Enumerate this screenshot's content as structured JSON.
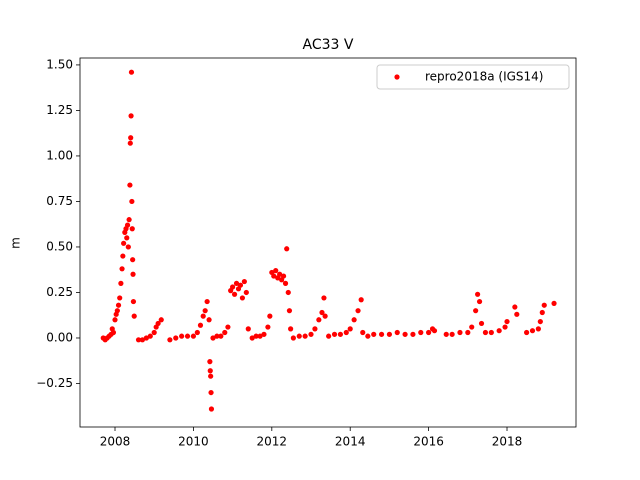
{
  "chart_data": {
    "type": "scatter",
    "title": "AC33 V",
    "y_label": "m",
    "xlim": [
      2007.107,
      2019.76
    ],
    "ylim": [
      -0.489,
      1.538
    ],
    "xticks": [
      2008,
      2010,
      2012,
      2014,
      2016,
      2018
    ],
    "yticks": [
      {
        "value": -0.25,
        "label": "−0.25"
      },
      {
        "value": 0,
        "label": "0.00"
      },
      {
        "value": 0.25,
        "label": "0.25"
      },
      {
        "value": 0.5,
        "label": "0.50"
      },
      {
        "value": 0.75,
        "label": "0.75"
      },
      {
        "value": 1,
        "label": "1.00"
      },
      {
        "value": 1.25,
        "label": "1.25"
      },
      {
        "value": 1.5,
        "label": "1.50"
      }
    ],
    "legend": "upper right",
    "series": [
      {
        "name": "repro2018a (IGS14)",
        "color": "#ff0000",
        "x": [
          2007.7,
          2007.75,
          2007.8,
          2007.85,
          2007.9,
          2007.93,
          2007.96,
          2008.0,
          2008.03,
          2008.06,
          2008.09,
          2008.12,
          2008.15,
          2008.18,
          2008.2,
          2008.22,
          2008.25,
          2008.28,
          2008.3,
          2008.32,
          2008.34,
          2008.36,
          2008.38,
          2008.39,
          2008.4,
          2008.41,
          2008.42,
          2008.43,
          2008.44,
          2008.45,
          2008.46,
          2008.47,
          2008.49,
          2008.6,
          2008.7,
          2008.8,
          2008.9,
          2009.0,
          2009.05,
          2009.1,
          2009.18,
          2009.4,
          2009.55,
          2009.7,
          2009.85,
          2010.0,
          2010.1,
          2010.18,
          2010.25,
          2010.3,
          2010.35,
          2010.4,
          2010.42,
          2010.43,
          2010.44,
          2010.45,
          2010.46,
          2010.5,
          2010.6,
          2010.7,
          2010.8,
          2010.88,
          2010.95,
          2011.0,
          2011.05,
          2011.1,
          2011.15,
          2011.2,
          2011.25,
          2011.3,
          2011.35,
          2011.4,
          2011.5,
          2011.6,
          2011.7,
          2011.8,
          2011.9,
          2011.95,
          2012.0,
          2012.05,
          2012.1,
          2012.15,
          2012.2,
          2012.25,
          2012.3,
          2012.35,
          2012.38,
          2012.42,
          2012.45,
          2012.48,
          2012.55,
          2012.7,
          2012.85,
          2013.0,
          2013.1,
          2013.2,
          2013.28,
          2013.33,
          2013.36,
          2013.45,
          2013.6,
          2013.75,
          2013.9,
          2014.0,
          2014.1,
          2014.2,
          2014.28,
          2014.32,
          2014.45,
          2014.6,
          2014.8,
          2015.0,
          2015.2,
          2015.4,
          2015.6,
          2015.8,
          2016.0,
          2016.1,
          2016.15,
          2016.45,
          2016.6,
          2016.8,
          2017.0,
          2017.1,
          2017.2,
          2017.25,
          2017.3,
          2017.35,
          2017.45,
          2017.6,
          2017.8,
          2017.95,
          2018.0,
          2018.2,
          2018.25,
          2018.5,
          2018.65,
          2018.8,
          2018.85,
          2018.9,
          2018.95,
          2019.2
        ],
        "values": [
          0.0,
          -0.01,
          0.0,
          0.01,
          0.02,
          0.05,
          0.03,
          0.1,
          0.13,
          0.15,
          0.18,
          0.22,
          0.3,
          0.38,
          0.45,
          0.52,
          0.58,
          0.6,
          0.55,
          0.62,
          0.5,
          0.65,
          0.84,
          1.07,
          1.1,
          1.22,
          1.46,
          0.75,
          0.6,
          0.43,
          0.35,
          0.2,
          0.12,
          -0.01,
          -0.01,
          0.0,
          0.01,
          0.03,
          0.06,
          0.08,
          0.1,
          -0.01,
          0.0,
          0.01,
          0.01,
          0.01,
          0.03,
          0.07,
          0.12,
          0.15,
          0.2,
          0.1,
          -0.13,
          -0.18,
          -0.21,
          -0.3,
          -0.39,
          0.0,
          0.01,
          0.01,
          0.03,
          0.06,
          0.26,
          0.28,
          0.24,
          0.3,
          0.27,
          0.29,
          0.22,
          0.31,
          0.25,
          0.05,
          0.0,
          0.01,
          0.01,
          0.02,
          0.06,
          0.12,
          0.36,
          0.34,
          0.37,
          0.33,
          0.35,
          0.32,
          0.34,
          0.3,
          0.49,
          0.25,
          0.15,
          0.05,
          0.0,
          0.01,
          0.01,
          0.02,
          0.05,
          0.1,
          0.14,
          0.22,
          0.12,
          0.01,
          0.02,
          0.02,
          0.03,
          0.05,
          0.1,
          0.15,
          0.21,
          0.03,
          0.01,
          0.02,
          0.02,
          0.02,
          0.03,
          0.02,
          0.02,
          0.03,
          0.03,
          0.05,
          0.04,
          0.02,
          0.02,
          0.03,
          0.03,
          0.06,
          0.15,
          0.24,
          0.2,
          0.08,
          0.03,
          0.03,
          0.04,
          0.06,
          0.09,
          0.17,
          0.13,
          0.03,
          0.04,
          0.05,
          0.09,
          0.14,
          0.18,
          0.19
        ]
      }
    ]
  }
}
